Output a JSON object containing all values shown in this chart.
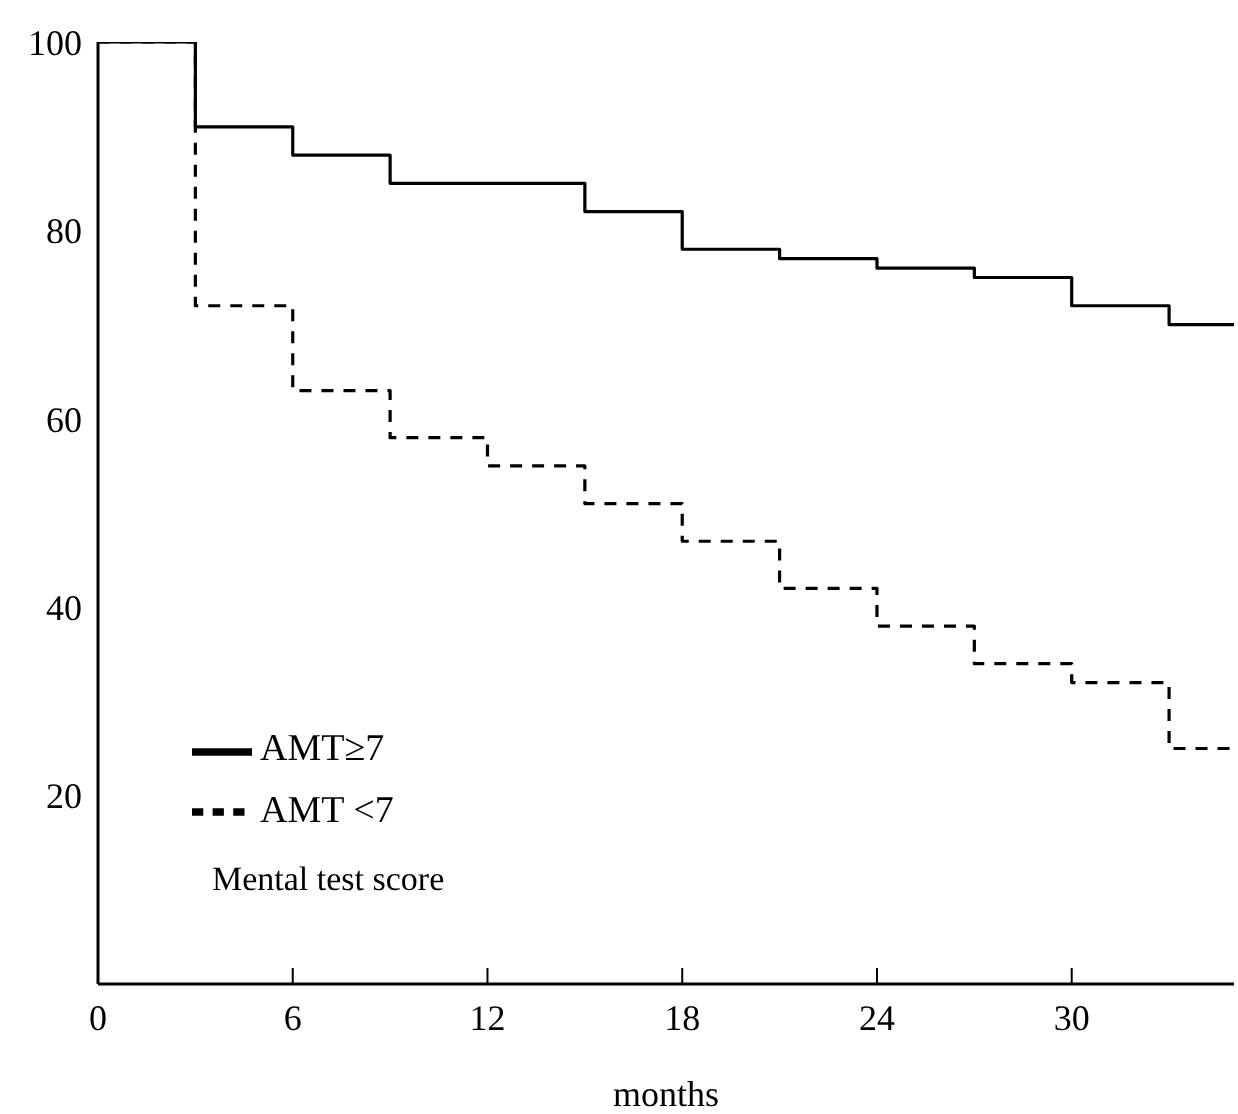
{
  "chart_data": {
    "type": "step",
    "xlabel": "months",
    "legend_title": "Mental test score",
    "x": [
      0,
      3,
      6,
      9,
      12,
      15,
      18,
      21,
      24,
      27,
      30,
      33,
      35
    ],
    "series": [
      {
        "name": "AMT≥7",
        "color": "#000000",
        "line_style": "solid",
        "values": [
          100,
          91,
          88,
          85,
          85,
          82,
          78,
          77,
          76,
          75,
          72,
          70,
          70
        ]
      },
      {
        "name": "AMT <7",
        "color": "#000000",
        "line_style": "dashed",
        "values": [
          100,
          72,
          63,
          58,
          55,
          51,
          47,
          42,
          38,
          34,
          32,
          25,
          25
        ]
      }
    ],
    "xlim": [
      0,
      35
    ],
    "xticks": [
      0,
      6,
      12,
      18,
      24,
      30
    ],
    "ylim": [
      0,
      100
    ],
    "yticks": [
      20,
      40,
      60,
      80,
      100
    ],
    "grid": false,
    "legend": "bottom left",
    "marker": "none"
  }
}
